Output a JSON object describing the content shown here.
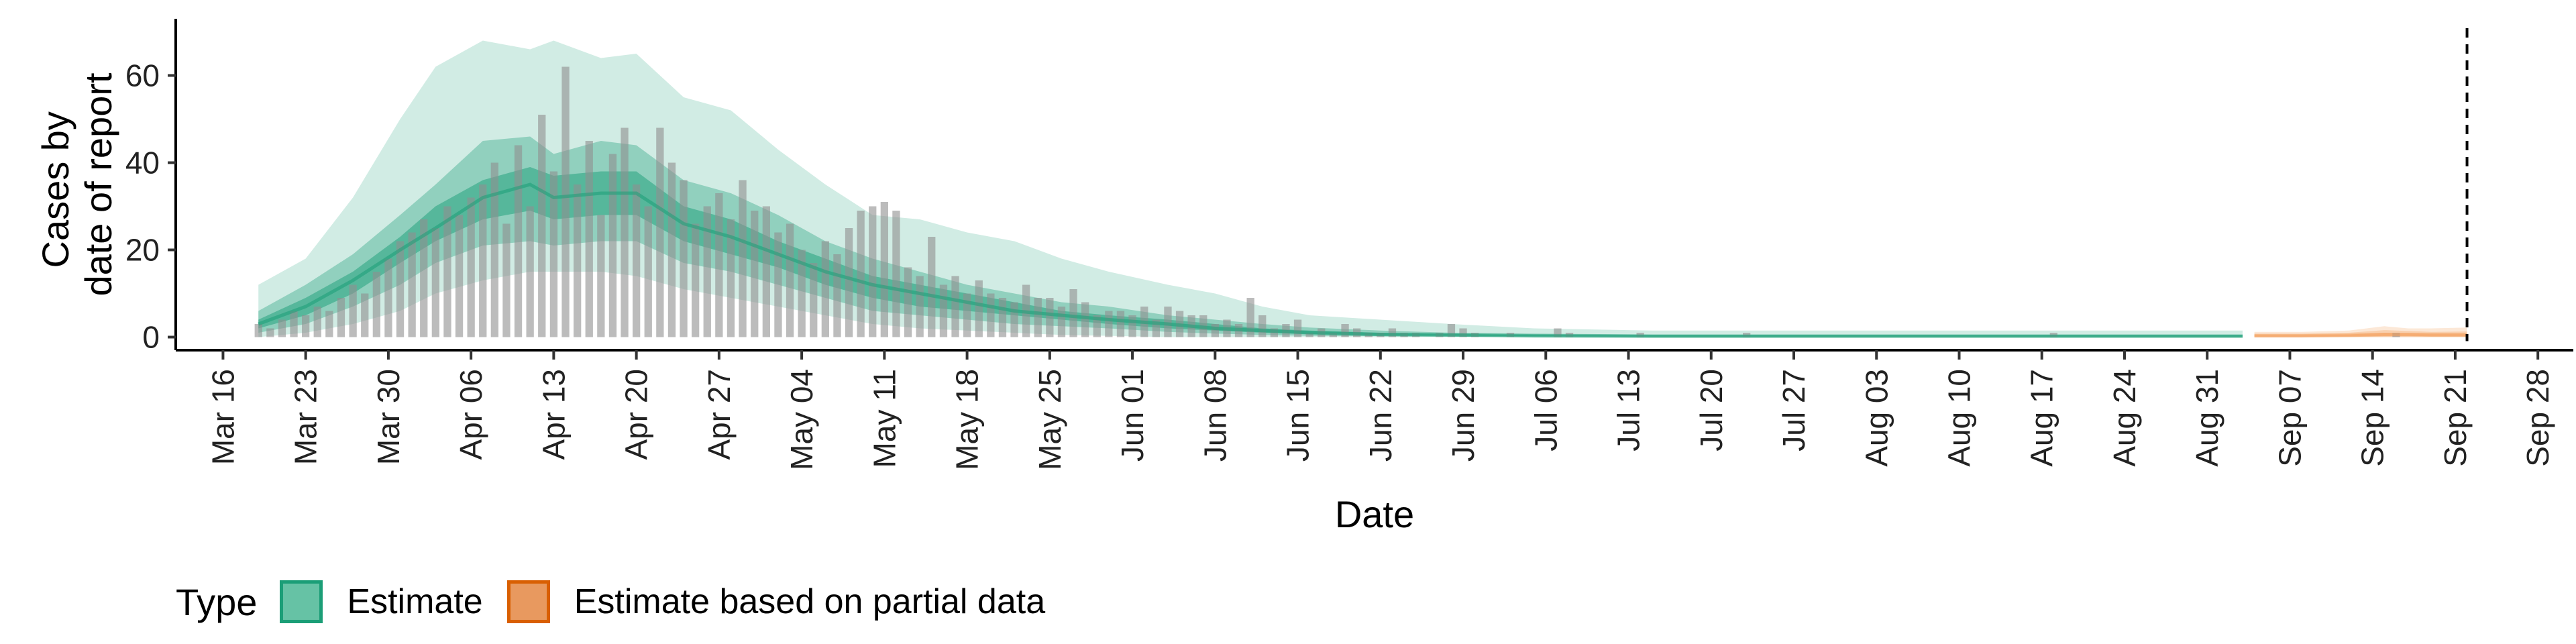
{
  "chart_data": {
    "type": "bar",
    "xlabel": "Date",
    "ylabel_lines": [
      "Cases by",
      "date of report"
    ],
    "ylim": [
      -3,
      73
    ],
    "yticks": [
      0,
      20,
      40,
      60
    ],
    "x_start": "2020-03-12",
    "x_end": "2020-10-01",
    "x_tick_labels": [
      "Mar 16",
      "Mar 23",
      "Mar 30",
      "Apr 06",
      "Apr 13",
      "Apr 20",
      "Apr 27",
      "May 04",
      "May 11",
      "May 18",
      "May 25",
      "Jun 01",
      "Jun 08",
      "Jun 15",
      "Jun 22",
      "Jun 29",
      "Jul 06",
      "Jul 13",
      "Jul 20",
      "Jul 27",
      "Aug 03",
      "Aug 10",
      "Aug 17",
      "Aug 24",
      "Aug 31",
      "Sep 07",
      "Sep 14",
      "Sep 21",
      "Sep 28"
    ],
    "x_tick_dates": [
      "2020-03-16",
      "2020-03-23",
      "2020-03-30",
      "2020-04-06",
      "2020-04-13",
      "2020-04-20",
      "2020-04-27",
      "2020-05-04",
      "2020-05-11",
      "2020-05-18",
      "2020-05-25",
      "2020-06-01",
      "2020-06-08",
      "2020-06-15",
      "2020-06-22",
      "2020-06-29",
      "2020-07-06",
      "2020-07-13",
      "2020-07-20",
      "2020-07-27",
      "2020-08-03",
      "2020-08-10",
      "2020-08-17",
      "2020-08-24",
      "2020-08-31",
      "2020-09-07",
      "2020-09-14",
      "2020-09-21",
      "2020-09-28"
    ],
    "reference_line_date": "2020-09-22",
    "bars": {
      "start_date": "2020-03-19",
      "values": [
        3,
        2,
        4,
        6,
        5,
        7,
        6,
        9,
        12,
        10,
        15,
        18,
        22,
        24,
        27,
        25,
        30,
        28,
        32,
        35,
        40,
        26,
        44,
        30,
        51,
        38,
        62,
        35,
        45,
        28,
        42,
        48,
        35,
        30,
        48,
        40,
        36,
        26,
        30,
        33,
        27,
        36,
        29,
        30,
        24,
        26,
        20,
        17,
        22,
        19,
        25,
        29,
        30,
        31,
        29,
        16,
        14,
        23,
        12,
        14,
        10,
        13,
        10,
        9,
        8,
        12,
        9,
        9,
        7,
        11,
        8,
        5,
        6,
        6,
        5,
        7,
        4,
        7,
        6,
        5,
        5,
        3,
        4,
        3,
        9,
        5,
        2,
        3,
        4,
        1,
        2,
        1,
        3,
        2,
        1,
        1,
        2,
        1,
        1,
        0,
        1,
        3,
        2,
        1,
        0,
        0,
        1,
        0,
        0,
        0,
        2,
        1,
        0,
        0,
        0,
        0,
        0,
        1,
        0,
        0,
        0,
        0,
        0,
        0,
        0,
        0,
        1,
        0,
        0,
        0,
        0,
        0,
        0,
        0,
        0,
        0,
        0,
        0,
        0,
        0,
        0,
        0,
        0,
        0,
        0,
        0,
        0,
        0,
        0,
        0,
        0,
        0,
        1,
        0,
        0,
        0,
        0,
        0,
        0,
        0,
        0,
        0,
        0,
        0,
        0,
        0,
        0,
        0,
        0,
        0,
        0,
        0,
        0,
        0,
        0,
        0,
        0,
        0,
        0,
        0,
        0,
        1,
        0,
        0,
        0,
        0
      ]
    },
    "series": [
      {
        "name": "Estimate",
        "color": "#1b9e77",
        "dates": [
          "2020-03-19",
          "2020-03-23",
          "2020-03-27",
          "2020-03-31",
          "2020-04-03",
          "2020-04-07",
          "2020-04-11",
          "2020-04-13",
          "2020-04-17",
          "2020-04-20",
          "2020-04-24",
          "2020-04-28",
          "2020-05-02",
          "2020-05-06",
          "2020-05-10",
          "2020-05-14",
          "2020-05-18",
          "2020-05-22",
          "2020-05-26",
          "2020-05-30",
          "2020-06-04",
          "2020-06-08",
          "2020-06-12",
          "2020-06-16",
          "2020-06-22",
          "2020-06-28",
          "2020-07-05",
          "2020-07-15",
          "2020-08-01",
          "2020-08-15",
          "2020-09-01",
          "2020-09-03"
        ],
        "median": [
          3,
          7,
          13,
          20,
          25,
          32,
          35,
          32,
          33,
          33,
          26,
          23,
          19,
          15,
          12,
          10,
          8,
          6,
          5,
          4,
          3,
          2,
          1.5,
          1,
          0.6,
          0.5,
          0.3,
          0.2,
          0.2,
          0.2,
          0.2,
          0.2
        ],
        "lower_50": [
          2,
          5,
          10,
          17,
          22,
          27,
          29,
          27,
          28,
          28,
          22,
          19,
          16,
          12,
          9,
          7,
          6,
          5,
          4,
          3,
          2,
          1.5,
          1,
          0.7,
          0.4,
          0.3,
          0.2,
          0.1,
          0.1,
          0.1,
          0.1,
          0.1
        ],
        "upper_50": [
          4,
          9,
          15,
          23,
          30,
          36,
          39,
          37,
          38,
          38,
          30,
          27,
          22,
          18,
          14,
          12,
          10,
          8,
          6,
          5,
          4,
          3,
          2,
          1.5,
          1,
          0.7,
          0.5,
          0.4,
          0.4,
          0.4,
          0.4,
          0.4
        ],
        "lower_90": [
          1,
          3,
          7,
          12,
          17,
          21,
          22,
          21,
          22,
          22,
          17,
          15,
          12,
          9,
          6,
          5,
          4,
          3,
          2.5,
          2,
          1.2,
          0.8,
          0.5,
          0.3,
          0.2,
          0.1,
          0,
          0,
          0,
          0,
          0,
          0
        ],
        "upper_90": [
          6,
          12,
          19,
          28,
          35,
          45,
          46,
          42,
          45,
          44,
          36,
          33,
          28,
          22,
          18,
          15,
          12,
          10,
          8,
          7,
          5,
          4,
          3,
          2.2,
          1.5,
          1,
          0.8,
          0.6,
          0.6,
          0.6,
          0.6,
          0.6
        ],
        "lower_outer": [
          0,
          1,
          3,
          6,
          10,
          13,
          15,
          15,
          15,
          14,
          11,
          9,
          7,
          5,
          3,
          2,
          1.5,
          1,
          0.5,
          0.3,
          0,
          0,
          0,
          0,
          0,
          0,
          0,
          0,
          0,
          0,
          0,
          0
        ],
        "upper_outer": [
          12,
          18,
          32,
          50,
          62,
          68,
          66,
          68,
          64,
          65,
          55,
          52,
          43,
          35,
          28,
          27,
          24,
          22,
          18,
          15,
          12,
          10,
          7,
          5,
          4,
          3,
          2,
          1.5,
          1.5,
          1.5,
          1.5,
          1.5
        ]
      },
      {
        "name": "Estimate based on partial data",
        "color": "#d95f02",
        "dates": [
          "2020-09-04",
          "2020-09-08",
          "2020-09-12",
          "2020-09-15",
          "2020-09-17",
          "2020-09-19",
          "2020-09-22"
        ],
        "median": [
          0.3,
          0.3,
          0.4,
          0.6,
          0.6,
          0.5,
          0.5
        ],
        "lower_50": [
          0.1,
          0.1,
          0.2,
          0.3,
          0.3,
          0.2,
          0.2
        ],
        "upper_50": [
          0.5,
          0.5,
          0.6,
          1.0,
          0.9,
          0.8,
          0.8
        ],
        "lower_90": [
          0,
          0,
          0,
          0,
          0,
          0,
          0
        ],
        "upper_90": [
          0.8,
          0.8,
          1.0,
          1.6,
          1.4,
          1.2,
          1.3
        ],
        "lower_outer": [
          0,
          0,
          0,
          0,
          0,
          0,
          0
        ],
        "upper_outer": [
          1.2,
          1.2,
          1.5,
          2.5,
          2.0,
          2.0,
          2.2
        ]
      }
    ]
  },
  "legend": {
    "title": "Type",
    "items": [
      {
        "label": "Estimate",
        "fill": "#66c2a5",
        "border": "#1b9e77"
      },
      {
        "label": "Estimate based on partial data",
        "fill": "#e8995f",
        "border": "#d95f02"
      }
    ]
  }
}
